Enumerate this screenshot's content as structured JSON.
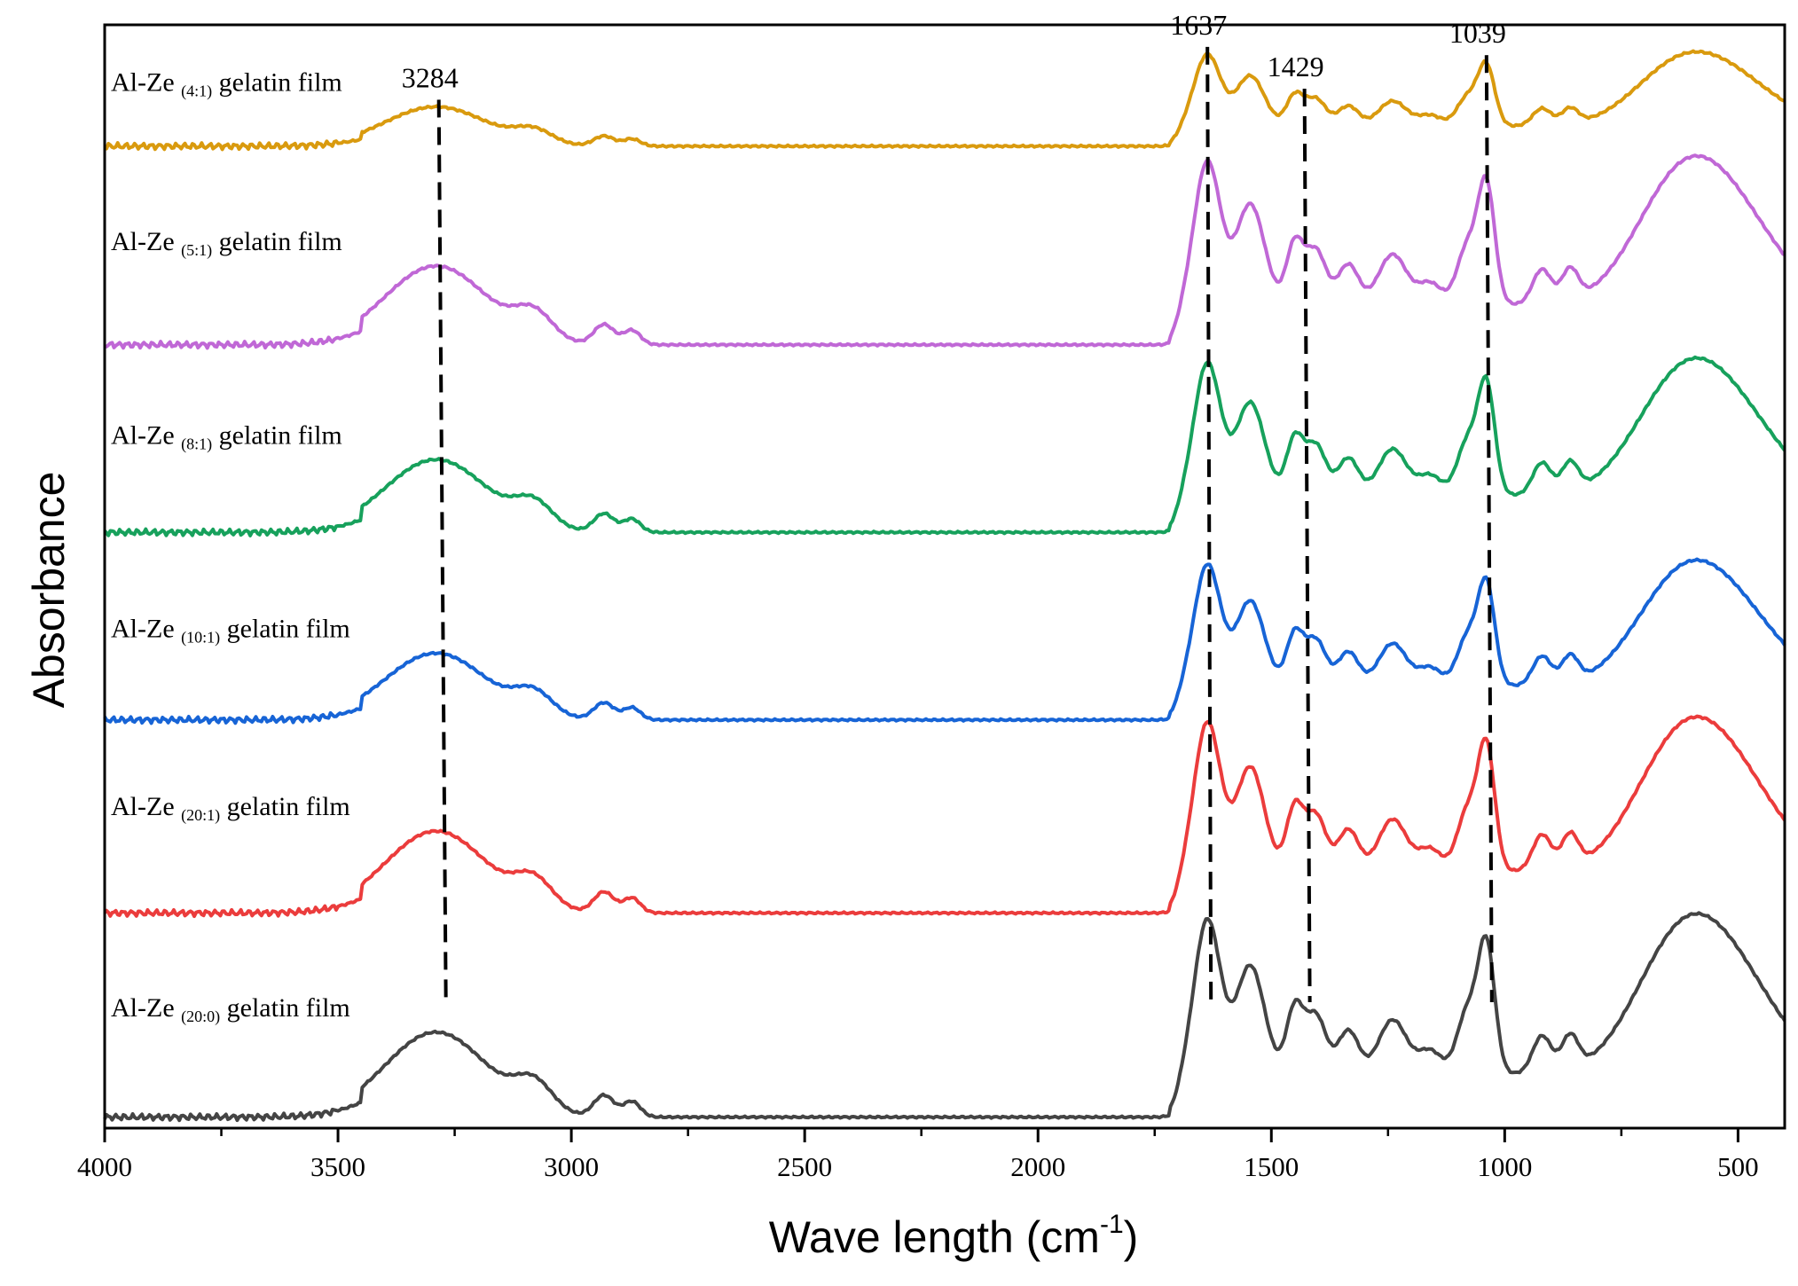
{
  "chart_data": {
    "type": "line",
    "xlabel": "Wave length (cm",
    "xlabel_sup": "-1",
    "xlabel_close": ")",
    "ylabel": "Absorbance",
    "xlim": [
      4000,
      400
    ],
    "x_reversed": true,
    "xticks": [
      4000,
      3500,
      3000,
      2500,
      2000,
      1500,
      1000,
      500
    ],
    "xtick_labels": [
      "4000",
      "3500",
      "3000",
      "2500",
      "2000",
      "1500",
      "1000",
      "500"
    ],
    "ylim": [
      0,
      10
    ],
    "grid": false,
    "legend": "none",
    "peaks": [
      {
        "label": "3284",
        "x": 3284
      },
      {
        "label": "1637",
        "x": 1637
      },
      {
        "label": "1429",
        "x": 1429
      },
      {
        "label": "1039",
        "x": 1039
      }
    ],
    "series": [
      {
        "label_main": "Al-Ze ",
        "label_sub": "(4:1)",
        "label_tail": " gelatin film",
        "color": "#d99a0e",
        "baseline": 8.9,
        "scale": 0.65
      },
      {
        "label_main": "Al-Ze ",
        "label_sub": "(5:1)",
        "label_tail": " gelatin film",
        "color": "#c068d6",
        "baseline": 7.1,
        "scale": 1.3
      },
      {
        "label_main": "Al-Ze ",
        "label_sub": "(8:1)",
        "label_tail": " gelatin film",
        "color": "#17a15c",
        "baseline": 5.4,
        "scale": 1.2
      },
      {
        "label_main": "Al-Ze ",
        "label_sub": "(10:1)",
        "label_tail": " gelatin film",
        "color": "#1764d6",
        "baseline": 3.7,
        "scale": 1.1
      },
      {
        "label_main": "Al-Ze ",
        "label_sub": "(20:1)",
        "label_tail": " gelatin film",
        "color": "#eb3c3c",
        "baseline": 1.95,
        "scale": 1.35
      },
      {
        "label_main": "Al-Ze ",
        "label_sub": "(20:0)",
        "label_tail": " gelatin film",
        "color": "#444444",
        "baseline": 0.1,
        "scale": 1.4
      }
    ]
  }
}
